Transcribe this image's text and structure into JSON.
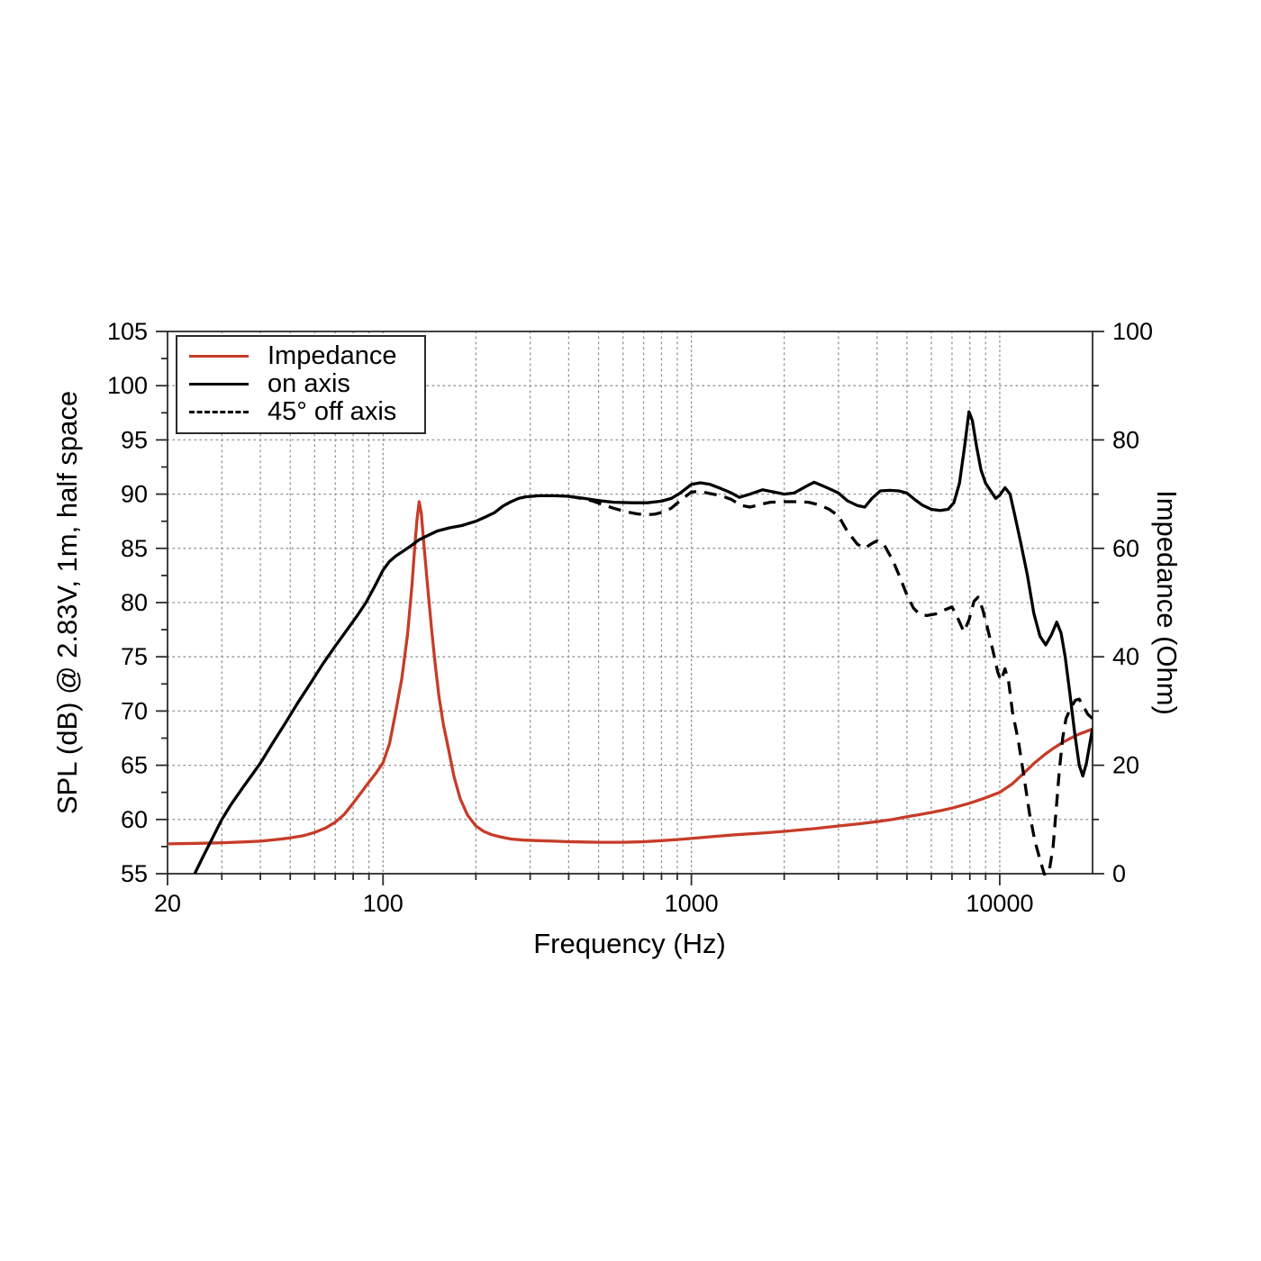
{
  "axes": {
    "x": {
      "label": "Frequency (Hz)",
      "scale": "log",
      "min": 20,
      "max": 20000,
      "major_ticks": [
        20,
        100,
        1000,
        10000
      ],
      "major_tick_labels": [
        "20",
        "100",
        "1000",
        "10000"
      ]
    },
    "y_left": {
      "label": "SPL (dB) @ 2.83V, 1m, half space",
      "min": 55,
      "max": 105,
      "ticks": [
        55,
        60,
        65,
        70,
        75,
        80,
        85,
        90,
        95,
        100,
        105
      ],
      "minor_step": 2.5
    },
    "y_right": {
      "label": "Impedance (Ohm)",
      "min": 0,
      "max": 100,
      "ticks": [
        0,
        20,
        40,
        60,
        80,
        100
      ],
      "minor_step": 10
    }
  },
  "legend": {
    "items": [
      {
        "label": "Impedance",
        "style": "solid",
        "color": "#c63c28"
      },
      {
        "label": "on axis",
        "style": "solid",
        "color": "#000000"
      },
      {
        "label": "45° off axis",
        "style": "dashed",
        "color": "#000000"
      }
    ]
  },
  "colors": {
    "impedance": "#c63c28",
    "spl": "#000000",
    "grid": "#909090",
    "frame": "#2b2b2b"
  },
  "chart_data": {
    "type": "line",
    "title": "",
    "xlabel": "Frequency (Hz)",
    "x_scale": "log",
    "x_range": [
      20,
      20000
    ],
    "ylabel_left": "SPL (dB) @ 2.83V, 1m, half space",
    "y_left_range": [
      55,
      105
    ],
    "ylabel_right": "Impedance (Ohm)",
    "y_right_range": [
      0,
      100
    ],
    "grid": "dotted",
    "legend_position": "top-left",
    "series": [
      {
        "name": "Impedance",
        "axis": "right",
        "unit": "Ohm",
        "color": "#c63c28",
        "dash": "none",
        "points": [
          [
            20,
            5.5
          ],
          [
            25,
            5.6
          ],
          [
            30,
            5.7
          ],
          [
            35,
            5.85
          ],
          [
            40,
            6.0
          ],
          [
            45,
            6.3
          ],
          [
            50,
            6.6
          ],
          [
            55,
            7.0
          ],
          [
            60,
            7.6
          ],
          [
            65,
            8.4
          ],
          [
            70,
            9.5
          ],
          [
            75,
            11.0
          ],
          [
            80,
            13.0
          ],
          [
            85,
            15.0
          ],
          [
            90,
            16.9
          ],
          [
            95,
            18.6
          ],
          [
            100,
            20.5
          ],
          [
            105,
            24.0
          ],
          [
            110,
            30.0
          ],
          [
            115,
            36.0
          ],
          [
            120,
            44.0
          ],
          [
            124,
            53.0
          ],
          [
            127,
            61.0
          ],
          [
            129,
            65.5
          ],
          [
            131,
            68.6
          ],
          [
            133,
            66.5
          ],
          [
            136,
            60.0
          ],
          [
            140,
            52.0
          ],
          [
            144,
            44.5
          ],
          [
            148,
            38.0
          ],
          [
            152,
            32.5
          ],
          [
            157,
            27.5
          ],
          [
            163,
            23.0
          ],
          [
            170,
            17.8
          ],
          [
            178,
            13.8
          ],
          [
            188,
            10.8
          ],
          [
            200,
            8.8
          ],
          [
            212,
            7.8
          ],
          [
            225,
            7.2
          ],
          [
            240,
            6.8
          ],
          [
            260,
            6.4
          ],
          [
            285,
            6.2
          ],
          [
            320,
            6.1
          ],
          [
            360,
            6.0
          ],
          [
            400,
            5.9
          ],
          [
            450,
            5.85
          ],
          [
            500,
            5.8
          ],
          [
            550,
            5.8
          ],
          [
            600,
            5.8
          ],
          [
            650,
            5.85
          ],
          [
            700,
            5.9
          ],
          [
            800,
            6.1
          ],
          [
            900,
            6.3
          ],
          [
            1000,
            6.5
          ],
          [
            1200,
            6.9
          ],
          [
            1400,
            7.2
          ],
          [
            1700,
            7.5
          ],
          [
            2000,
            7.8
          ],
          [
            2500,
            8.3
          ],
          [
            3000,
            8.8
          ],
          [
            3500,
            9.2
          ],
          [
            4000,
            9.6
          ],
          [
            4500,
            10.0
          ],
          [
            5000,
            10.5
          ],
          [
            5500,
            10.9
          ],
          [
            6000,
            11.3
          ],
          [
            6500,
            11.7
          ],
          [
            7000,
            12.1
          ],
          [
            8000,
            13.0
          ],
          [
            9000,
            14.0
          ],
          [
            10000,
            15.0
          ],
          [
            11000,
            16.6
          ],
          [
            12000,
            18.6
          ],
          [
            13000,
            20.5
          ],
          [
            14000,
            22.0
          ],
          [
            15000,
            23.2
          ],
          [
            16000,
            24.2
          ],
          [
            17000,
            25.0
          ],
          [
            18000,
            25.7
          ],
          [
            19000,
            26.2
          ],
          [
            20000,
            26.7
          ]
        ]
      },
      {
        "name": "on axis",
        "axis": "left",
        "unit": "dB",
        "color": "#000000",
        "dash": "none",
        "points": [
          [
            24.5,
            55
          ],
          [
            26,
            56.5
          ],
          [
            28,
            58.3
          ],
          [
            30,
            60.0
          ],
          [
            32,
            61.3
          ],
          [
            35,
            62.9
          ],
          [
            38,
            64.3
          ],
          [
            40,
            65.2
          ],
          [
            44,
            67.1
          ],
          [
            48,
            68.8
          ],
          [
            53,
            70.8
          ],
          [
            58,
            72.5
          ],
          [
            64,
            74.4
          ],
          [
            70,
            76.0
          ],
          [
            76,
            77.4
          ],
          [
            82,
            78.7
          ],
          [
            88,
            80.0
          ],
          [
            94,
            81.5
          ],
          [
            100,
            83.0
          ],
          [
            105,
            83.8
          ],
          [
            110,
            84.3
          ],
          [
            117,
            84.8
          ],
          [
            124,
            85.3
          ],
          [
            131,
            85.8
          ],
          [
            140,
            86.2
          ],
          [
            150,
            86.6
          ],
          [
            165,
            86.9
          ],
          [
            180,
            87.1
          ],
          [
            200,
            87.5
          ],
          [
            215,
            87.9
          ],
          [
            230,
            88.3
          ],
          [
            245,
            88.9
          ],
          [
            260,
            89.3
          ],
          [
            275,
            89.6
          ],
          [
            290,
            89.75
          ],
          [
            320,
            89.85
          ],
          [
            360,
            89.85
          ],
          [
            400,
            89.8
          ],
          [
            450,
            89.6
          ],
          [
            500,
            89.4
          ],
          [
            560,
            89.25
          ],
          [
            640,
            89.2
          ],
          [
            720,
            89.2
          ],
          [
            800,
            89.35
          ],
          [
            860,
            89.6
          ],
          [
            920,
            90.1
          ],
          [
            1000,
            90.9
          ],
          [
            1070,
            91.05
          ],
          [
            1150,
            90.9
          ],
          [
            1250,
            90.5
          ],
          [
            1350,
            90.1
          ],
          [
            1430,
            89.7
          ],
          [
            1550,
            90.0
          ],
          [
            1700,
            90.4
          ],
          [
            1850,
            90.2
          ],
          [
            2000,
            90.0
          ],
          [
            2150,
            90.1
          ],
          [
            2350,
            90.7
          ],
          [
            2500,
            91.1
          ],
          [
            2650,
            90.8
          ],
          [
            2850,
            90.4
          ],
          [
            3000,
            90.1
          ],
          [
            3200,
            89.4
          ],
          [
            3450,
            88.95
          ],
          [
            3650,
            88.8
          ],
          [
            3850,
            89.6
          ],
          [
            4100,
            90.3
          ],
          [
            4400,
            90.35
          ],
          [
            4700,
            90.3
          ],
          [
            5000,
            90.1
          ],
          [
            5300,
            89.5
          ],
          [
            5600,
            89.0
          ],
          [
            6000,
            88.6
          ],
          [
            6400,
            88.5
          ],
          [
            6800,
            88.6
          ],
          [
            7100,
            89.2
          ],
          [
            7400,
            91.0
          ],
          [
            7700,
            94.5
          ],
          [
            7950,
            97.6
          ],
          [
            8150,
            96.8
          ],
          [
            8400,
            94.5
          ],
          [
            8700,
            92.2
          ],
          [
            9000,
            91.0
          ],
          [
            9400,
            90.2
          ],
          [
            9700,
            89.6
          ],
          [
            10000,
            89.9
          ],
          [
            10400,
            90.6
          ],
          [
            10800,
            90.0
          ],
          [
            11200,
            88.0
          ],
          [
            11700,
            85.5
          ],
          [
            12300,
            82.5
          ],
          [
            12900,
            79.0
          ],
          [
            13500,
            76.9
          ],
          [
            14100,
            76.1
          ],
          [
            14700,
            77.0
          ],
          [
            15300,
            78.2
          ],
          [
            15800,
            77.2
          ],
          [
            16300,
            75.0
          ],
          [
            16900,
            71.5
          ],
          [
            17500,
            68.0
          ],
          [
            18100,
            65.0
          ],
          [
            18600,
            64.0
          ],
          [
            19100,
            65.2
          ],
          [
            19600,
            67.0
          ],
          [
            20000,
            68.4
          ]
        ]
      },
      {
        "name": "45° off axis",
        "axis": "left",
        "unit": "dB",
        "color": "#000000",
        "dash": "14 9",
        "points": [
          [
            400,
            89.8
          ],
          [
            450,
            89.55
          ],
          [
            480,
            89.35
          ],
          [
            520,
            89.0
          ],
          [
            560,
            88.7
          ],
          [
            610,
            88.4
          ],
          [
            660,
            88.2
          ],
          [
            710,
            88.1
          ],
          [
            760,
            88.15
          ],
          [
            810,
            88.35
          ],
          [
            860,
            88.7
          ],
          [
            920,
            89.4
          ],
          [
            1000,
            90.2
          ],
          [
            1070,
            90.25
          ],
          [
            1150,
            90.05
          ],
          [
            1250,
            89.85
          ],
          [
            1350,
            89.5
          ],
          [
            1450,
            88.95
          ],
          [
            1550,
            88.8
          ],
          [
            1650,
            89.0
          ],
          [
            1800,
            89.25
          ],
          [
            2000,
            89.3
          ],
          [
            2200,
            89.3
          ],
          [
            2400,
            89.25
          ],
          [
            2600,
            89.0
          ],
          [
            2800,
            88.6
          ],
          [
            3000,
            88.0
          ],
          [
            3200,
            86.6
          ],
          [
            3450,
            85.4
          ],
          [
            3650,
            85.0
          ],
          [
            3850,
            85.45
          ],
          [
            4000,
            85.7
          ],
          [
            4200,
            85.4
          ],
          [
            4500,
            83.9
          ],
          [
            4750,
            82.3
          ],
          [
            5000,
            80.7
          ],
          [
            5250,
            79.5
          ],
          [
            5500,
            78.9
          ],
          [
            5800,
            78.8
          ],
          [
            6200,
            78.95
          ],
          [
            6600,
            79.3
          ],
          [
            7000,
            79.6
          ],
          [
            7300,
            78.6
          ],
          [
            7650,
            77.3
          ],
          [
            7950,
            78.4
          ],
          [
            8250,
            80.1
          ],
          [
            8500,
            80.5
          ],
          [
            8800,
            79.4
          ],
          [
            9100,
            77.8
          ],
          [
            9500,
            75.6
          ],
          [
            9850,
            73.6
          ],
          [
            10100,
            72.8
          ],
          [
            10400,
            73.9
          ],
          [
            10700,
            72.6
          ],
          [
            11000,
            69.9
          ],
          [
            11500,
            67.2
          ],
          [
            12000,
            63.8
          ],
          [
            12500,
            60.5
          ],
          [
            13000,
            58.0
          ],
          [
            13500,
            56.3
          ],
          [
            14000,
            54.8
          ],
          [
            14500,
            55.4
          ],
          [
            14900,
            57.5
          ],
          [
            15200,
            60.5
          ],
          [
            15600,
            64.5
          ],
          [
            16000,
            67.5
          ],
          [
            16400,
            69.3
          ],
          [
            17000,
            70.3
          ],
          [
            17600,
            71.0
          ],
          [
            18100,
            71.1
          ],
          [
            18700,
            70.4
          ],
          [
            19300,
            69.7
          ],
          [
            20000,
            69.3
          ]
        ]
      }
    ]
  }
}
